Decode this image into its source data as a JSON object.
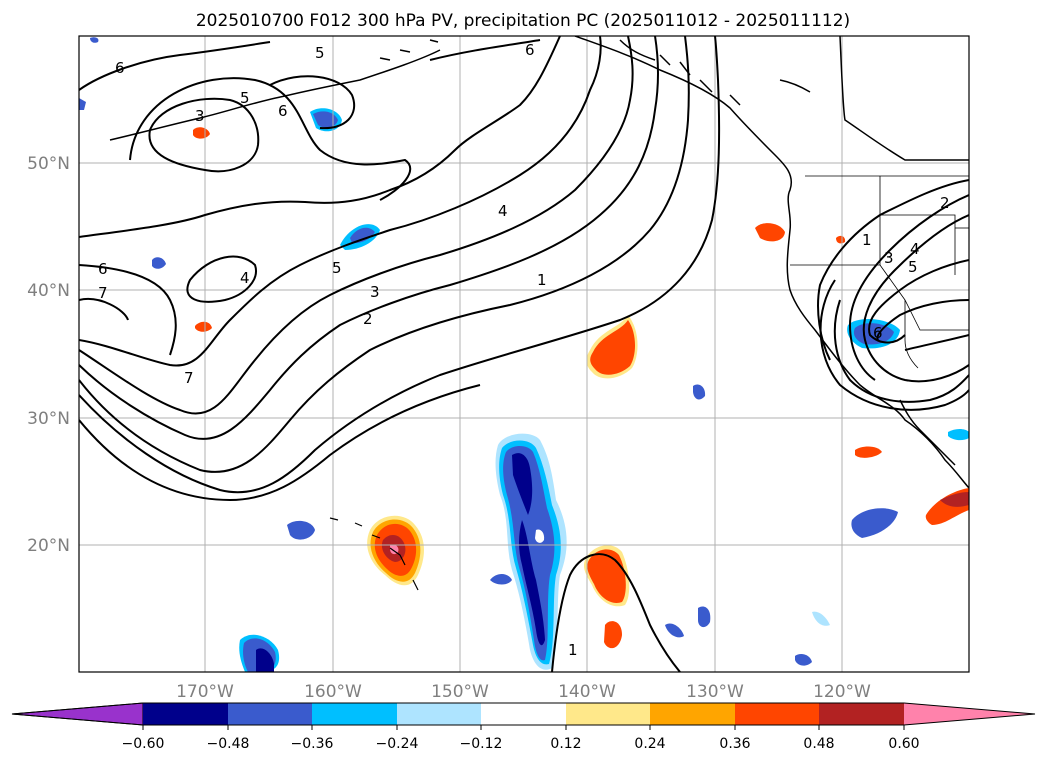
{
  "title": "2025010700 F012 300 hPa PV, precipitation PC (2025011012 - 2025011112)",
  "lon_labels": [
    "170°W",
    "160°W",
    "150°W",
    "140°W",
    "130°W",
    "120°W"
  ],
  "lat_labels": [
    "50°N",
    "40°N",
    "30°N",
    "20°N"
  ],
  "extent": {
    "lon_min": -180,
    "lon_max": -110,
    "lat_min": 10,
    "lat_max": 60
  },
  "colorbar": {
    "ticks": [
      "−0.60",
      "−0.48",
      "−0.36",
      "−0.24",
      "−0.12",
      "0.12",
      "0.24",
      "0.36",
      "0.48",
      "0.60"
    ],
    "colors": [
      "#9932cc",
      "#00008b",
      "#3a5bcd",
      "#00bfff",
      "#aee4ff",
      "#ffffff",
      "#ffe88a",
      "#ffa500",
      "#ff4500",
      "#b22222",
      "#ff82ab"
    ]
  },
  "contour_labels": [
    "6",
    "5",
    "3",
    "5",
    "6",
    "6",
    "4",
    "5",
    "3",
    "2",
    "1",
    "6",
    "7",
    "4",
    "7",
    "1",
    "2",
    "4",
    "3",
    "1",
    "5",
    "6"
  ]
}
